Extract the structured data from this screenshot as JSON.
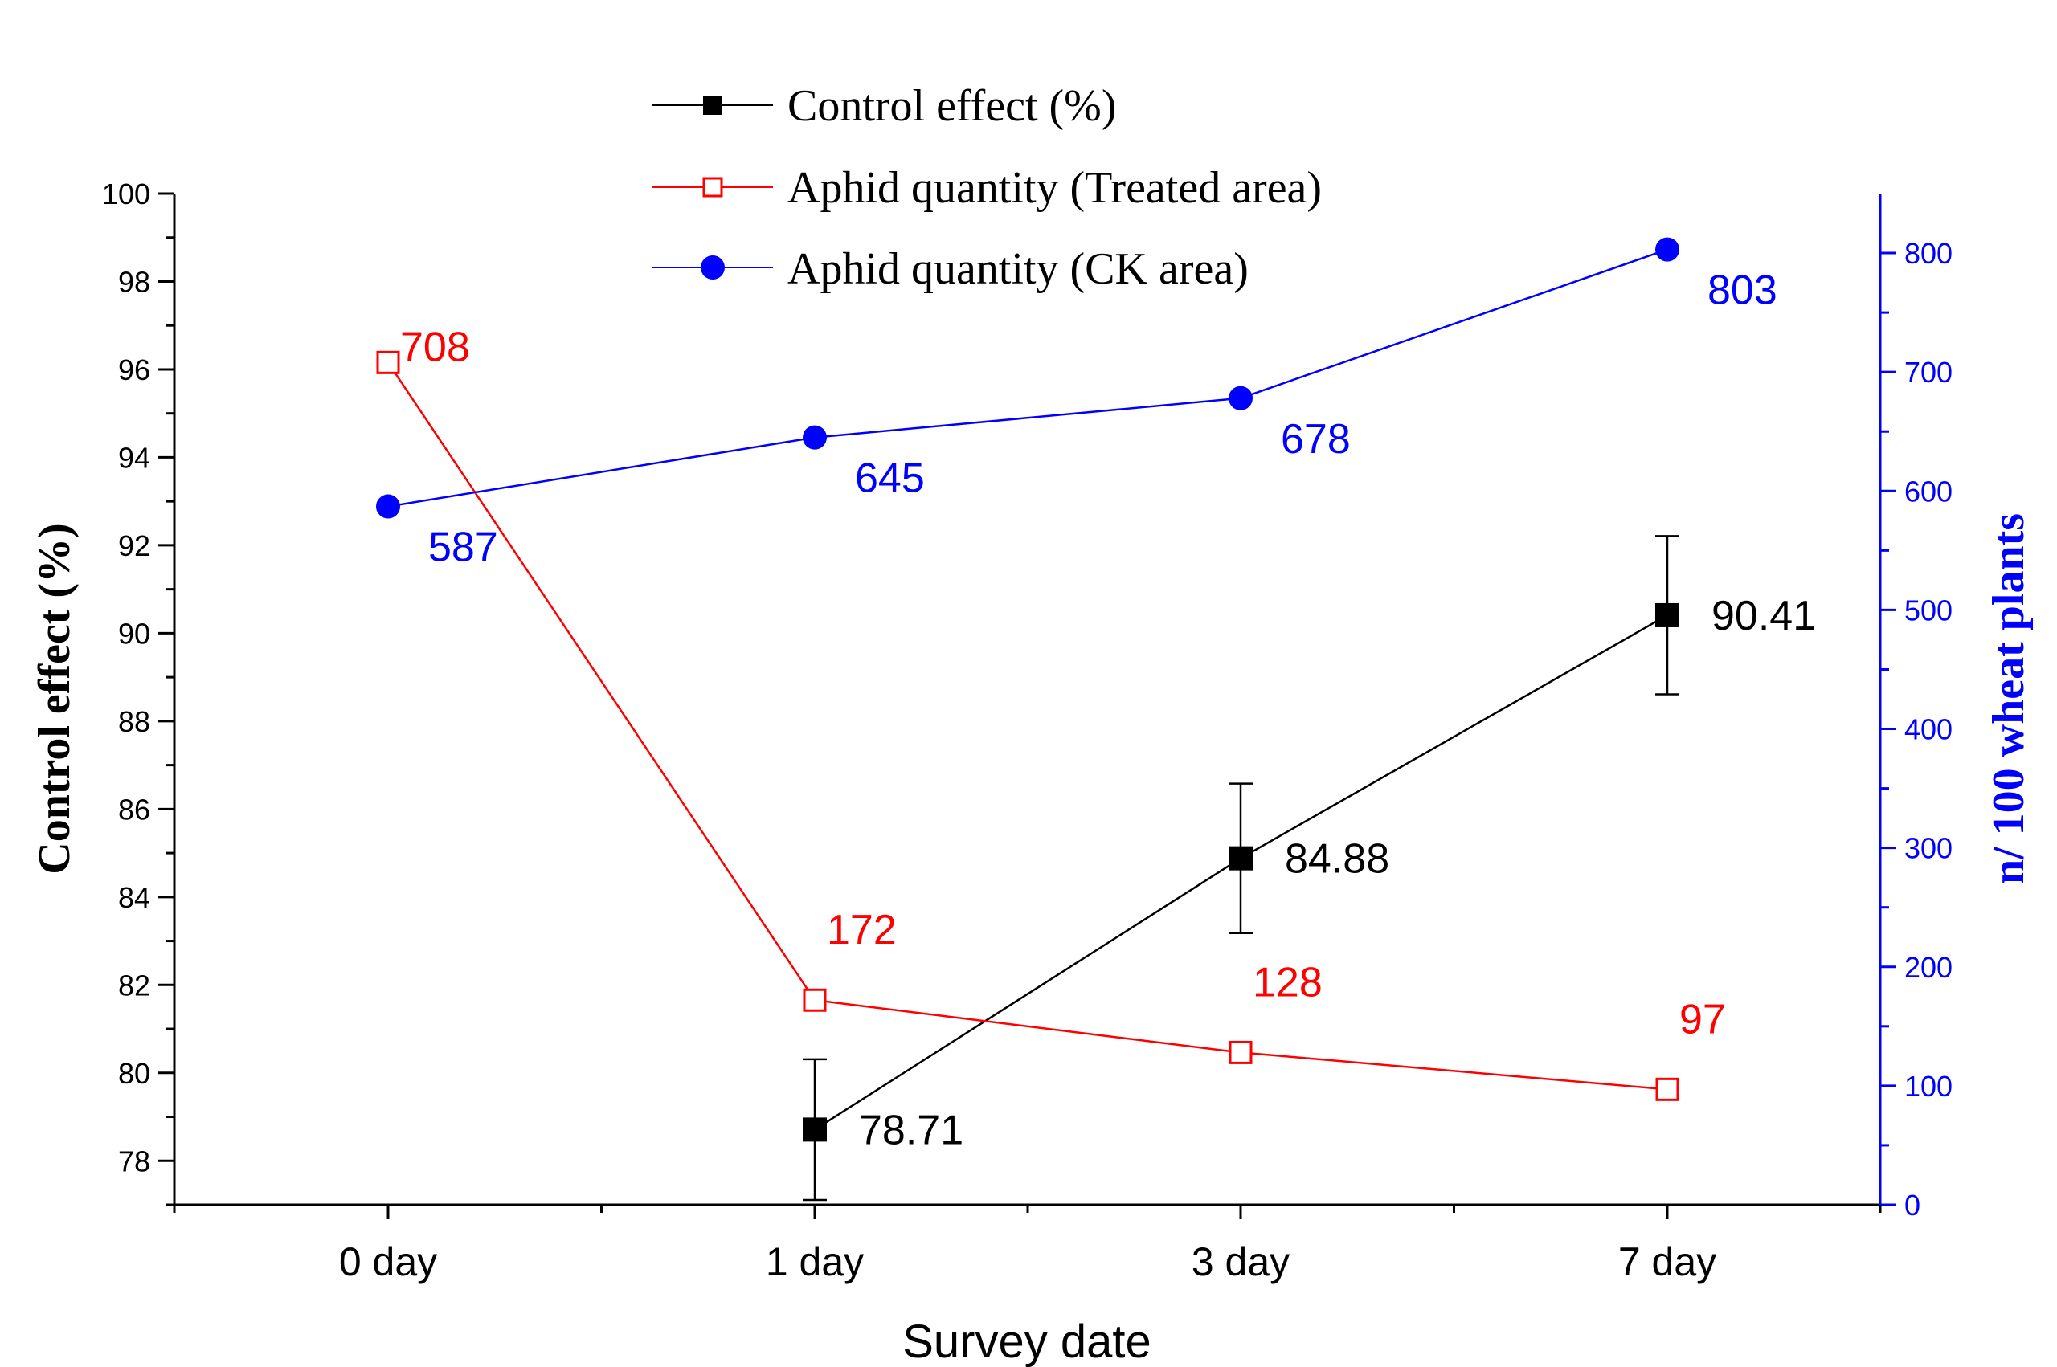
{
  "chart_data": {
    "type": "line",
    "categories": [
      "0 day",
      "1 day",
      "3 day",
      "7 day"
    ],
    "xlabel": "Survey date",
    "ylabel": "Control effect (%)",
    "y2label": "n/ 100 wheat plants",
    "ylim": [
      77,
      100
    ],
    "y2lim": [
      0,
      850
    ],
    "yticks": [
      78,
      80,
      82,
      84,
      86,
      88,
      90,
      92,
      94,
      96,
      98,
      100
    ],
    "y2ticks": [
      0,
      100,
      200,
      300,
      400,
      500,
      600,
      700,
      800
    ],
    "legend_position": "top-center",
    "series": [
      {
        "name": "Control effect (%)",
        "axis": "left",
        "marker": "square-filled",
        "color": "#000000",
        "values": [
          null,
          78.71,
          84.88,
          90.41
        ],
        "errors": [
          null,
          1.6,
          1.7,
          1.8
        ],
        "labels": [
          "",
          "78.71",
          "84.88",
          "90.41"
        ]
      },
      {
        "name": "Aphid quantity (Treated area)",
        "axis": "right",
        "marker": "square-open",
        "color": "#ff0000",
        "values": [
          708,
          172,
          128,
          97
        ],
        "labels": [
          "708",
          "172",
          "128",
          "97"
        ]
      },
      {
        "name": "Aphid quantity (CK area)",
        "axis": "right",
        "marker": "circle-filled",
        "color": "#0000ff",
        "values": [
          587,
          645,
          678,
          803
        ],
        "labels": [
          "587",
          "645",
          "678",
          "803"
        ]
      }
    ]
  }
}
